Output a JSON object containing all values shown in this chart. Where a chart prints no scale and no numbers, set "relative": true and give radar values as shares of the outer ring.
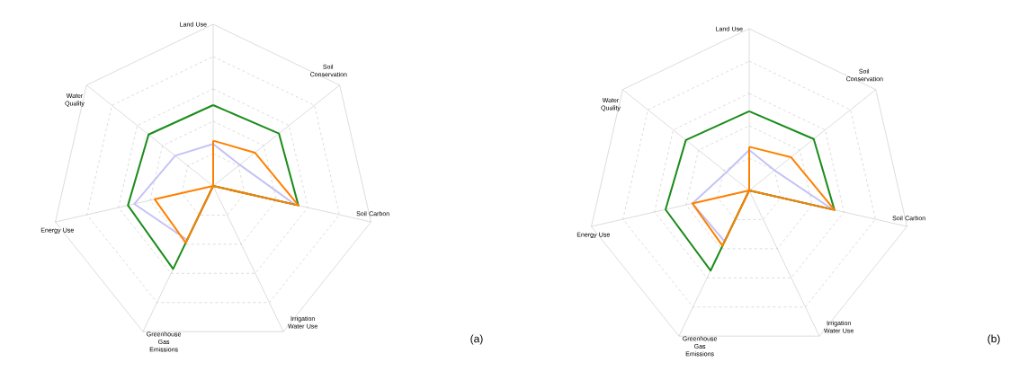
{
  "chart_data": [
    {
      "type": "radar",
      "relative": true,
      "grid": true,
      "categories": [
        "Land Use",
        "Soil Conservation",
        "Soil Carbon",
        "Irrigation Water Use",
        "Greenhouse Gas Emissions",
        "Energy Use",
        "Water Quality"
      ],
      "series": [
        {
          "color": "#c4c4f6",
          "values": [
            0.26,
            0.21,
            0.52,
            0,
            0.37,
            0.5,
            0.3
          ]
        },
        {
          "color": "#1a8c1a",
          "values": [
            0.5,
            0.52,
            0.54,
            0,
            0.57,
            0.54,
            0.51
          ]
        },
        {
          "color": "#ff8000",
          "values": [
            0.28,
            0.33,
            0.54,
            0,
            0.39,
            0.37,
            0
          ]
        }
      ],
      "annotations": [
        "(a)"
      ]
    },
    {
      "type": "radar",
      "relative": true,
      "grid": true,
      "categories": [
        "Land Use",
        "Soil Conservation",
        "Soil Carbon",
        "Irrigation Water Use",
        "Greenhouse Gas Emissions",
        "Energy Use",
        "Water Quality"
      ],
      "series": [
        {
          "color": "#c4c4f6",
          "values": [
            0.25,
            0.2,
            0.53,
            0,
            0.35,
            0.36,
            0.18
          ]
        },
        {
          "color": "#1a8c1a",
          "values": [
            0.49,
            0.51,
            0.54,
            0,
            0.55,
            0.53,
            0.5
          ]
        },
        {
          "color": "#ff8000",
          "values": [
            0.27,
            0.33,
            0.54,
            0,
            0.38,
            0.36,
            0
          ]
        }
      ],
      "annotations": [
        "(b)"
      ]
    }
  ]
}
